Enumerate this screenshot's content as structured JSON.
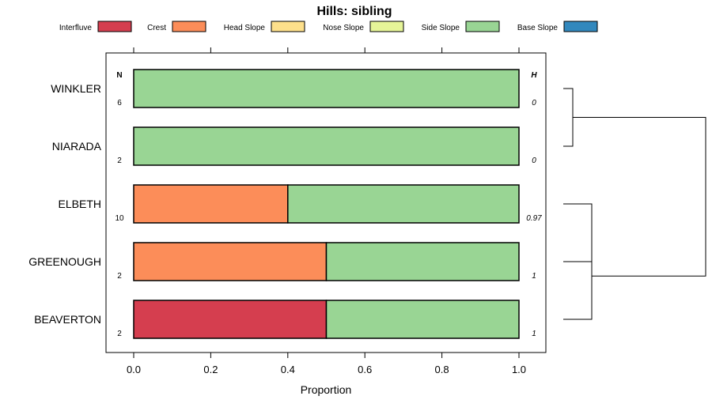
{
  "chart_data": {
    "type": "bar",
    "orientation": "horizontal",
    "stacked": true,
    "title": "Hills: sibling",
    "xlabel": "Proportion",
    "ylabel": "",
    "xlim": [
      0,
      1
    ],
    "x_ticks": [
      "0.0",
      "0.2",
      "0.4",
      "0.6",
      "0.8",
      "1.0"
    ],
    "legend_position": "top",
    "legend": [
      {
        "name": "Interfluve",
        "color": "#d53e4f"
      },
      {
        "name": "Crest",
        "color": "#fc8d59"
      },
      {
        "name": "Head Slope",
        "color": "#fee08b"
      },
      {
        "name": "Nose Slope",
        "color": "#e6f598"
      },
      {
        "name": "Side Slope",
        "color": "#99d594"
      },
      {
        "name": "Base Slope",
        "color": "#3288bd"
      }
    ],
    "categories": [
      "WINKLER",
      "NIARADA",
      "ELBETH",
      "GREENOUGH",
      "BEAVERTON"
    ],
    "series": [
      {
        "name": "Interfluve",
        "values": [
          0,
          0,
          0,
          0,
          0.5
        ]
      },
      {
        "name": "Crest",
        "values": [
          0,
          0,
          0.4,
          0.5,
          0
        ]
      },
      {
        "name": "Head Slope",
        "values": [
          0,
          0,
          0,
          0,
          0
        ]
      },
      {
        "name": "Nose Slope",
        "values": [
          0,
          0,
          0,
          0,
          0
        ]
      },
      {
        "name": "Side Slope",
        "values": [
          1,
          1,
          0.6,
          0.5,
          0.5
        ]
      },
      {
        "name": "Base Slope",
        "values": [
          0,
          0,
          0,
          0,
          0
        ]
      }
    ],
    "n_header": "N",
    "h_header": "H",
    "n_values": [
      "6",
      "2",
      "10",
      "2",
      "2"
    ],
    "h_values": [
      "0",
      "0",
      "0.97",
      "1",
      "1"
    ],
    "dendrogram": {
      "merges": [
        {
          "left": "WINKLER",
          "right": "NIARADA"
        },
        {
          "left": "ELBETH",
          "right": "GREENOUGH"
        },
        {
          "left": "ELBETH+GREENOUGH",
          "right": "BEAVERTON"
        },
        {
          "left": "WINKLER+NIARADA",
          "right": "ELBETH+GREENOUGH+BEAVERTON"
        }
      ]
    }
  }
}
